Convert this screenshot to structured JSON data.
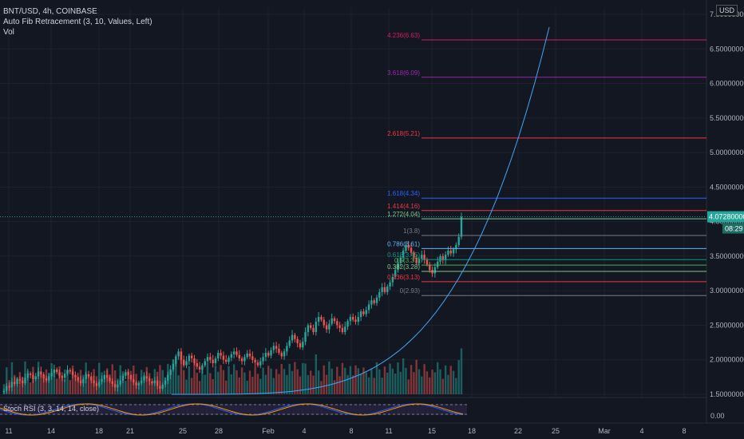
{
  "header": {
    "symbol_line": "BNT/USD, 4h, COINBASE",
    "indicator_fib": "Auto Fib Retracement (3, 10, Values, Left)",
    "indicator_vol": "Vol",
    "currency": "USD"
  },
  "price_scale": {
    "labels": [
      "7.00000000",
      "6.50000000",
      "6.00000000",
      "5.50000000",
      "5.00000000",
      "4.50000000",
      "4.00000000",
      "3.50000000",
      "3.00000000",
      "2.50000000",
      "2.00000000",
      "1.50000000"
    ],
    "values": [
      7.0,
      6.5,
      6.0,
      5.5,
      5.0,
      4.5,
      4.0,
      3.5,
      3.0,
      2.5,
      2.0,
      1.5
    ],
    "last_price": "4.07280000",
    "countdown": "08:29",
    "last_price_color": "#26a69a"
  },
  "time_axis": {
    "labels": [
      "11",
      "14",
      "18",
      "21",
      "25",
      "28",
      "Feb",
      "4",
      "8",
      "11",
      "15",
      "18",
      "22",
      "25",
      "Mar",
      "4",
      "8"
    ]
  },
  "rsi": {
    "label": "Stoch RSI (3, 3, 14, 14, close)",
    "scale_label": "0.00"
  },
  "chart_data": {
    "type": "candlestick",
    "ylim": [
      1.45,
      7.1
    ],
    "fib_levels": [
      {
        "label": "4.236(6.63)",
        "value": 6.63,
        "color": "#d81b60"
      },
      {
        "label": "3.618(6.09)",
        "value": 6.09,
        "color": "#9c27b0"
      },
      {
        "label": "2.618(5.21)",
        "value": 5.21,
        "color": "#f23645"
      },
      {
        "label": "1.618(4.34)",
        "value": 4.34,
        "color": "#2962ff"
      },
      {
        "label": "1.414(4.16)",
        "value": 4.16,
        "color": "#f23645"
      },
      {
        "label": "1.272(4.04)",
        "value": 4.04,
        "color": "#81c784"
      },
      {
        "label": "1(3.8)",
        "value": 3.8,
        "color": "#787b86"
      },
      {
        "label": "0.786(3.61)",
        "value": 3.61,
        "color": "#64b5f6"
      },
      {
        "label": "0.618(3.45)",
        "value": 3.45,
        "color": "#089981"
      },
      {
        "label": "0.5(3.37)",
        "value": 3.37,
        "color": "#4caf50"
      },
      {
        "label": "0.382(3.28)",
        "value": 3.28,
        "color": "#81c784"
      },
      {
        "label": "0.236(3.13)",
        "value": 3.13,
        "color": "#f23645"
      },
      {
        "label": "0(2.93)",
        "value": 2.93,
        "color": "#787b86"
      }
    ],
    "closes": [
      1.55,
      1.62,
      1.6,
      1.68,
      1.65,
      1.72,
      1.7,
      1.66,
      1.74,
      1.8,
      1.78,
      1.72,
      1.76,
      1.83,
      1.79,
      1.73,
      1.7,
      1.76,
      1.81,
      1.86,
      1.82,
      1.77,
      1.74,
      1.8,
      1.85,
      1.83,
      1.78,
      1.75,
      1.7,
      1.66,
      1.72,
      1.79,
      1.76,
      1.7,
      1.66,
      1.62,
      1.68,
      1.72,
      1.78,
      1.74,
      1.69,
      1.65,
      1.6,
      1.64,
      1.7,
      1.77,
      1.82,
      1.78,
      1.72,
      1.67,
      1.63,
      1.66,
      1.7,
      1.76,
      1.73,
      1.69,
      1.66,
      1.7,
      1.62,
      1.58,
      1.64,
      1.7,
      1.78,
      1.86,
      1.94,
      2.05,
      2.12,
      2.0,
      1.92,
      1.98,
      2.06,
      2.02,
      1.95,
      1.9,
      1.86,
      1.92,
      1.98,
      2.04,
      2.0,
      1.95,
      2.02,
      2.1,
      2.06,
      2.0,
      1.97,
      2.03,
      2.08,
      2.12,
      2.07,
      2.02,
      1.98,
      2.04,
      2.09,
      2.05,
      2.0,
      1.96,
      1.92,
      1.98,
      2.04,
      2.1,
      2.06,
      2.14,
      2.2,
      2.16,
      2.1,
      2.05,
      2.12,
      2.2,
      2.28,
      2.36,
      2.3,
      2.24,
      2.18,
      2.26,
      2.4,
      2.5,
      2.46,
      2.4,
      2.55,
      2.62,
      2.58,
      2.5,
      2.44,
      2.52,
      2.6,
      2.56,
      2.5,
      2.46,
      2.4,
      2.48,
      2.56,
      2.62,
      2.58,
      2.55,
      2.62,
      2.7,
      2.66,
      2.72,
      2.8,
      2.86,
      2.82,
      2.9,
      2.98,
      3.05,
      2.98,
      3.06,
      3.12,
      3.2,
      3.3,
      3.4,
      3.48,
      3.58,
      3.66,
      3.62,
      3.55,
      3.48,
      3.4,
      3.46,
      3.52,
      3.45,
      3.38,
      3.3,
      3.25,
      3.34,
      3.42,
      3.5,
      3.44,
      3.52,
      3.58,
      3.54,
      3.6,
      3.66,
      3.78,
      4.07
    ]
  }
}
